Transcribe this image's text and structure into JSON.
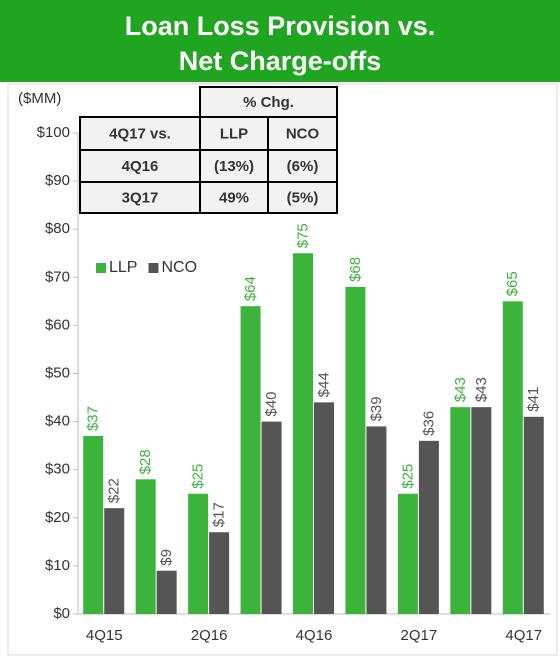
{
  "chart_data": {
    "type": "bar",
    "title_lines": [
      "Loan Loss Provision vs.",
      "Net Charge-offs"
    ],
    "y_label": "($MM)",
    "categories": [
      "4Q15",
      null,
      "2Q16",
      null,
      "4Q16",
      null,
      "2Q17",
      null,
      "4Q17"
    ],
    "series": [
      {
        "name": "LLP",
        "color": "#3cb43c",
        "values": [
          37,
          28,
          25,
          64,
          75,
          68,
          25,
          43,
          65
        ],
        "value_labels": [
          "$37",
          "$28",
          "$25",
          "$64",
          "$75",
          "$68",
          "$25",
          "$43",
          "$65"
        ]
      },
      {
        "name": "NCO",
        "color": "#555555",
        "values": [
          22,
          9,
          17,
          40,
          44,
          39,
          36,
          43,
          41
        ],
        "value_labels": [
          "$22",
          "$9",
          "$17",
          "$40",
          "$44",
          "$39",
          "$36",
          "$43",
          "$41"
        ]
      }
    ],
    "ylim": [
      0,
      100
    ],
    "yticks": [
      {
        "value": 0,
        "label": "$0"
      },
      {
        "value": 10,
        "label": "$10"
      },
      {
        "value": 20,
        "label": "$20"
      },
      {
        "value": 30,
        "label": "$30"
      },
      {
        "value": 40,
        "label": "$40"
      },
      {
        "value": 50,
        "label": "$50"
      },
      {
        "value": 60,
        "label": "$60"
      },
      {
        "value": 70,
        "label": "$70"
      },
      {
        "value": 80,
        "label": "$80"
      },
      {
        "value": 90,
        "label": "$90"
      },
      {
        "value": 100,
        "label": "$100"
      }
    ],
    "grid": false,
    "legend": "upper left",
    "table": {
      "header": "% Chg.",
      "columns": [
        "4Q17 vs.",
        "LLP",
        "NCO"
      ],
      "rows": [
        [
          "4Q16",
          "(13%)",
          "(6%)"
        ],
        [
          "3Q17",
          "49%",
          "(5%)"
        ]
      ]
    }
  }
}
